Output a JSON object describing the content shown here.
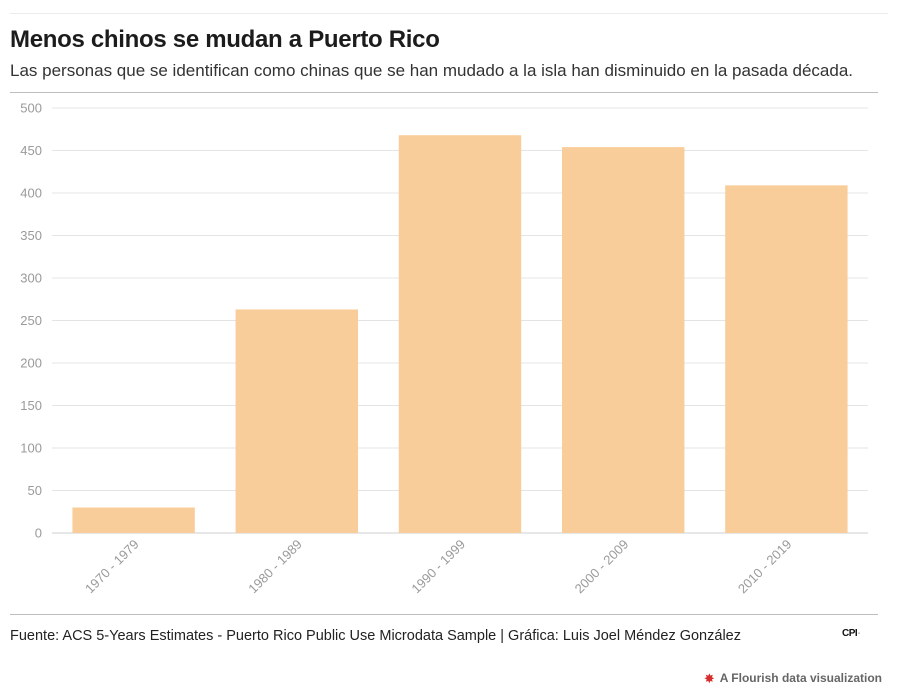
{
  "header": {
    "title": "Menos chinos se mudan a Puerto Rico",
    "subtitle": "Las personas que se identifican como chinas que se han mudado a la isla han disminuido en la pasada década."
  },
  "footer": {
    "source": "Fuente: ACS 5-Years Estimates - Puerto Rico Public Use Microdata Sample | Gráfica: Luis Joel Méndez González",
    "logo_text": "CPI",
    "flourish_label": "A Flourish data visualization",
    "flourish_icon": "flourish-burst-icon"
  },
  "colors": {
    "bar": "#f9cd99",
    "grid": "#e4e4e4",
    "tick_text": "#9a9a9a",
    "flourish_icon": "#d62e2e"
  },
  "chart_data": {
    "type": "bar",
    "categories": [
      "1970 - 1979",
      "1980 - 1989",
      "1990 - 1999",
      "2000 - 2009",
      "2010 - 2019"
    ],
    "values": [
      30,
      263,
      468,
      454,
      409
    ],
    "y_ticks": [
      "0",
      "50",
      "100",
      "150",
      "200",
      "250",
      "300",
      "350",
      "400",
      "450",
      "500"
    ],
    "ylim": [
      0,
      500
    ],
    "grid": true,
    "x_tick_rotation": "diagonal"
  }
}
